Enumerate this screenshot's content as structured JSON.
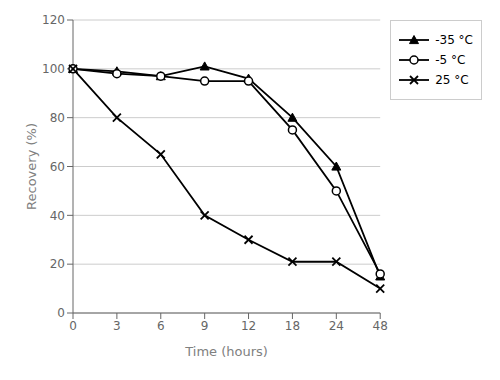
{
  "chart_data": {
    "type": "line",
    "x_label": "Time (hours)",
    "y_label": "Recovery (%)",
    "categories": [
      "0",
      "3",
      "6",
      "9",
      "12",
      "18",
      "24",
      "48"
    ],
    "series": [
      {
        "name": "-35 °C",
        "color": "black",
        "marker": "triangle",
        "values": [
          100,
          99,
          97,
          101,
          96,
          80,
          60,
          15
        ]
      },
      {
        "name": "-5 °C",
        "color": "black",
        "marker": "open-circle",
        "values": [
          100,
          98,
          97,
          95,
          95,
          75,
          50,
          16
        ]
      },
      {
        "name": "25 °C",
        "color": "black",
        "marker": "x",
        "values": [
          100,
          80,
          65,
          40,
          30,
          21,
          21,
          10
        ]
      }
    ],
    "ylim": [
      0,
      120
    ],
    "yticks": [
      0,
      20,
      40,
      60,
      80,
      100,
      120
    ],
    "grid": true,
    "legend": "right"
  }
}
